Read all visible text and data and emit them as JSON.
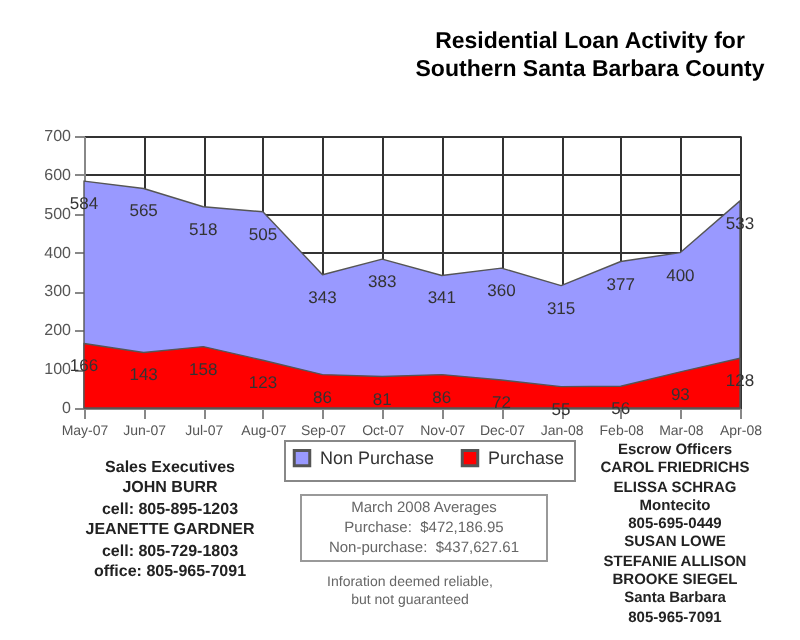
{
  "chart_data": {
    "type": "area",
    "title": "Residential Loan Activity for Southern Santa Barbara County",
    "categories": [
      "May-07",
      "Jun-07",
      "Jul-07",
      "Aug-07",
      "Sep-07",
      "Oct-07",
      "Nov-07",
      "Dec-07",
      "Jan-08",
      "Feb-08",
      "Mar-08",
      "Apr-08"
    ],
    "series": [
      {
        "name": "Non Purchase",
        "color": "#9999ff",
        "values": [
          584,
          565,
          518,
          505,
          343,
          383,
          341,
          360,
          315,
          377,
          400,
          533
        ]
      },
      {
        "name": "Purchase",
        "color": "#ff0000",
        "values": [
          166,
          143,
          158,
          123,
          86,
          81,
          86,
          72,
          55,
          56,
          93,
          128
        ]
      }
    ],
    "ylim": [
      0,
      700
    ],
    "yticks": [
      0,
      100,
      200,
      300,
      400,
      500,
      600,
      700
    ],
    "grid": true,
    "legend": "bottom",
    "data_labels": true,
    "annotations": [
      "Sales Executives\nJOHN BURR\ncell: 805-895-1203\nJEANETTE GARDNER\ncell: 805-729-1803\noffice: 805-965-7091",
      "March 2008 Averages\nPurchase:  $472,186.95\nNon-purchase:  $437,627.61",
      "Inforation deemed reliable,\nbut not guaranteed",
      "Escrow Officers\nCAROL FRIEDRICHS\nELISSA SCHRAG\nMontecito\n805-695-0449\nSUSAN LOWE\nSTEFANIE ALLISON\nBROOKE SIEGEL\nSanta Barbara\n805-965-7091"
    ]
  }
}
